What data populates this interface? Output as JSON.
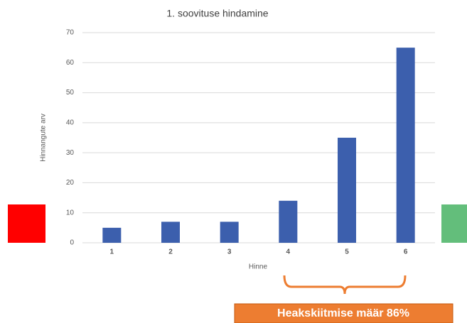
{
  "chart_data": {
    "type": "bar",
    "title": "1. soovituse hindamine",
    "x_label": "Hinne",
    "y_label": "Hinnangute arv",
    "categories": [
      "1",
      "2",
      "3",
      "4",
      "5",
      "6"
    ],
    "values": [
      5,
      7,
      7,
      14,
      35,
      65
    ],
    "color": "#3c5fad",
    "ylim": [
      0,
      70
    ],
    "yticks": [
      0,
      10,
      20,
      30,
      40,
      50,
      60,
      70
    ],
    "grid": true,
    "annotation": "Heakskiitmise määr 86%"
  }
}
